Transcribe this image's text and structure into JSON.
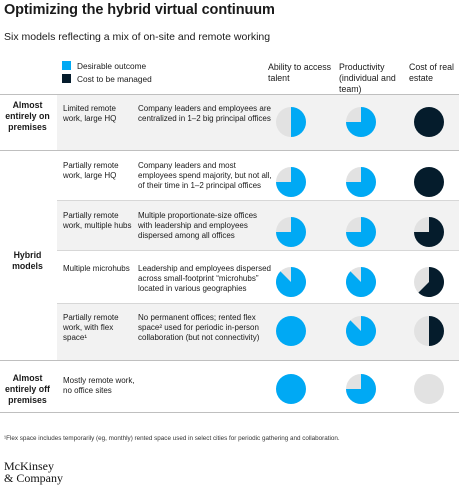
{
  "chart_data": {
    "type": "table",
    "title": "Optimizing the hybrid virtual continuum",
    "subtitle": "Six models reflecting a mix of on-site and remote working",
    "legend": [
      {
        "label": "Desirable outcome",
        "color": "#00a9f4"
      },
      {
        "label": "Cost to be managed",
        "color": "#051c2c"
      }
    ],
    "columns": [
      "Ability to access talent",
      "Productivity (individual and team)",
      "Cost of real estate"
    ],
    "groups": [
      {
        "label": "Almost entirely on premises"
      },
      {
        "label": "Hybrid models"
      },
      {
        "label": "Almost entirely off premises"
      }
    ],
    "rows": [
      {
        "model": "Limited remote work, large HQ",
        "description": "Company leaders and employees are centralized in 1–2 big principal offices",
        "talent": 0.5,
        "productivity": 0.75,
        "cost": 1.0
      },
      {
        "model": "Partially remote work, large HQ",
        "description": "Company leaders and most employees spend majority, but not all, of their time in 1–2 principal offices",
        "talent": 0.75,
        "productivity": 0.75,
        "cost": 1.0
      },
      {
        "model": "Partially remote work, multiple hubs",
        "description": "Multiple proportionate-size offices with leadership and employees dispersed among all offices",
        "talent": 0.75,
        "productivity": 0.75,
        "cost": 0.75
      },
      {
        "model": "Multiple microhubs",
        "description": "Leadership and employees dispersed across small-footprint “microhubs” located in various geographies",
        "talent": 0.875,
        "productivity": 0.875,
        "cost": 0.625
      },
      {
        "model": "Partially remote work, with flex space¹",
        "description": "No permanent offices; rented flex space² used for periodic in-person collaboration (but not connectivity)",
        "talent": 1.0,
        "productivity": 0.875,
        "cost": 0.5
      },
      {
        "model": "Mostly remote work, no office sites",
        "description": "",
        "talent": 1.0,
        "productivity": 0.75,
        "cost": 0
      }
    ],
    "footnote": "¹Flex space includes temporarily (eg, monthly) rented space used in select cities for periodic gathering and collaboration.",
    "source": "McKinsey & Company"
  },
  "colors": {
    "desirable": "#00a9f4",
    "cost": "#051c2c",
    "empty": "#e2e2e2",
    "band": "#f2f2f2"
  }
}
